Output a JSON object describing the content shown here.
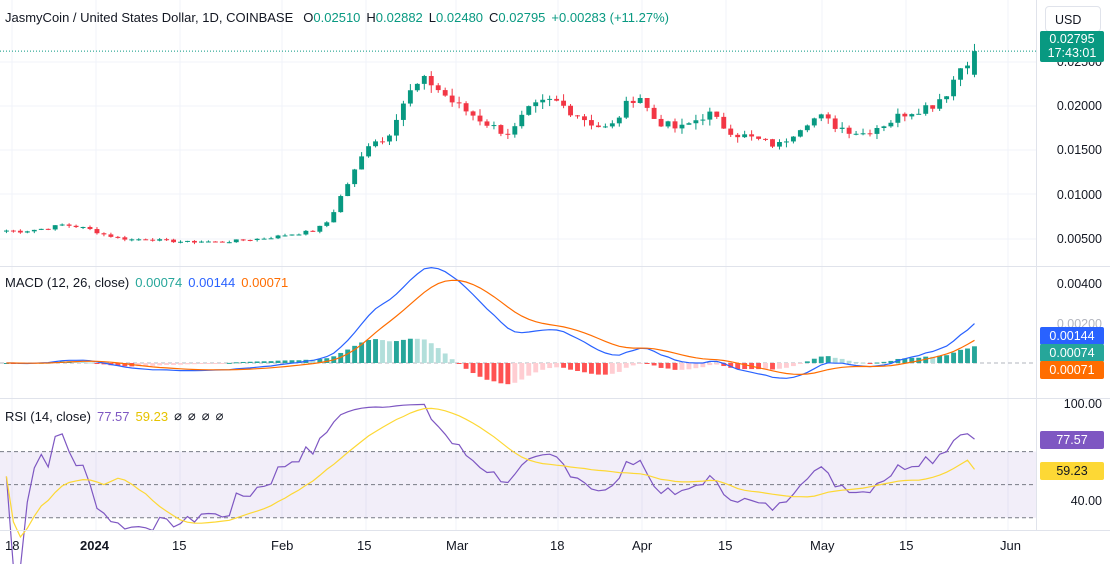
{
  "symbol_title": "JasmyCoin / United States Dollar, 1D, COINBASE",
  "ohlc": {
    "o_label": "O",
    "o": "0.02510",
    "h_label": "H",
    "h": "0.02882",
    "l_label": "L",
    "l": "0.02480",
    "c_label": "C",
    "c": "0.02795",
    "change": "+0.00283 (+11.27%)"
  },
  "currency_button": "USD",
  "price_axis": [
    "0.02500",
    "0.02000",
    "0.01500",
    "0.01000",
    "0.00500"
  ],
  "current_price_badge": {
    "price": "0.02795",
    "countdown": "17:43:01",
    "color": "#089981"
  },
  "macd": {
    "legend_title": "MACD (12, 26, close)",
    "hist_value": "0.00074",
    "macd_value": "0.00144",
    "signal_value": "0.00071",
    "axis": [
      "0.00400",
      "0.00200"
    ],
    "macd_color": "#2962ff",
    "signal_color": "#ff6d00",
    "hist_pos_color": "#26a69a",
    "hist_neg_color": "#ff5252"
  },
  "rsi": {
    "legend_title": "RSI (14, close)",
    "rsi_value": "77.57",
    "ma_value": "59.23",
    "empty_values": [
      "⌀",
      "⌀",
      "⌀",
      "⌀"
    ],
    "axis": [
      "100.00",
      "40.00"
    ],
    "rsi_color": "#7e57c2",
    "ma_color": "#fdd835"
  },
  "date_axis": [
    "18",
    "2024",
    "15",
    "Feb",
    "15",
    "Mar",
    "18",
    "Apr",
    "15",
    "May",
    "15",
    "Jun"
  ],
  "colors": {
    "up": "#089981",
    "down": "#f23645",
    "grid": "#f0f3fa"
  },
  "chart_data": {
    "type": "candlestick",
    "interval": "1D",
    "ohlc_last": {
      "open": 0.0251,
      "high": 0.02882,
      "low": 0.0248,
      "close": 0.02795
    },
    "price_range": [
      0.0025,
      0.0305
    ],
    "close_series": [
      0.0063,
      0.0062,
      0.0064,
      0.0066,
      0.007,
      0.0068,
      0.0064,
      0.0058,
      0.0054,
      0.0052,
      0.0053,
      0.0051,
      0.005,
      0.0049,
      0.005,
      0.0049,
      0.005,
      0.0052,
      0.0053,
      0.0055,
      0.0058,
      0.006,
      0.0063,
      0.0075,
      0.011,
      0.014,
      0.0175,
      0.017,
      0.021,
      0.0235,
      0.0245,
      0.023,
      0.0215,
      0.0205,
      0.0195,
      0.0185,
      0.018,
      0.0205,
      0.0215,
      0.022,
      0.021,
      0.02,
      0.019,
      0.0185,
      0.021,
      0.023,
      0.02,
      0.019,
      0.0185,
      0.0195,
      0.0205,
      0.019,
      0.018,
      0.0175,
      0.017,
      0.0165,
      0.018,
      0.0195,
      0.02,
      0.019,
      0.0185,
      0.018,
      0.0188,
      0.0195,
      0.0205,
      0.021,
      0.0215,
      0.023,
      0.026,
      0.028
    ],
    "macd_range": [
      -0.0015,
      0.0045
    ],
    "rsi_range": [
      25,
      100
    ],
    "rsi_bands": [
      70,
      50,
      30
    ]
  }
}
